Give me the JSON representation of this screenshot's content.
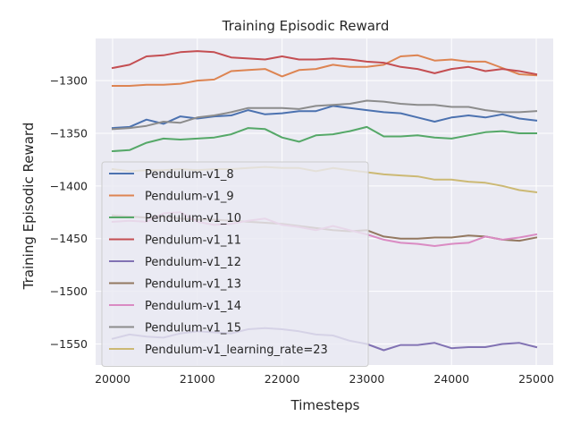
{
  "chart_data": {
    "type": "line",
    "title": "Training Episodic Reward",
    "xlabel": "Timesteps",
    "ylabel": "Training Episodic Reward",
    "xlim": [
      19800,
      25200
    ],
    "ylim": [
      -1570,
      -1260
    ],
    "xticks": [
      20000,
      21000,
      22000,
      23000,
      24000,
      25000
    ],
    "yticks": [
      -1550,
      -1500,
      -1450,
      -1400,
      -1350,
      -1300
    ],
    "grid": true,
    "legend_position": "left",
    "x": [
      20000,
      20200,
      20400,
      20600,
      20800,
      21000,
      21200,
      21400,
      21600,
      21800,
      22000,
      22200,
      22400,
      22600,
      22800,
      23000,
      23200,
      23400,
      23600,
      23800,
      24000,
      24200,
      24400,
      24600,
      24800,
      25000
    ],
    "series": [
      {
        "name": "Pendulum-v1_8",
        "color": "#4c72b0",
        "values": [
          -1345,
          -1344,
          -1337,
          -1341,
          -1334,
          -1336,
          -1334,
          -1333,
          -1328,
          -1332,
          -1331,
          -1329,
          -1329,
          -1324,
          -1326,
          -1328,
          -1330,
          -1331,
          -1335,
          -1339,
          -1335,
          -1333,
          -1335,
          -1332,
          -1336,
          -1338
        ]
      },
      {
        "name": "Pendulum-v1_9",
        "color": "#dd8452",
        "values": [
          -1305,
          -1305,
          -1304,
          -1304,
          -1303,
          -1300,
          -1299,
          -1291,
          -1290,
          -1289,
          -1296,
          -1290,
          -1289,
          -1285,
          -1287,
          -1287,
          -1285,
          -1277,
          -1276,
          -1281,
          -1280,
          -1282,
          -1282,
          -1288,
          -1294,
          -1295
        ]
      },
      {
        "name": "Pendulum-v1_10",
        "color": "#55a868",
        "values": [
          -1367,
          -1366,
          -1359,
          -1355,
          -1356,
          -1355,
          -1354,
          -1351,
          -1345,
          -1346,
          -1354,
          -1358,
          -1352,
          -1351,
          -1348,
          -1344,
          -1353,
          -1353,
          -1352,
          -1354,
          -1355,
          -1352,
          -1349,
          -1348,
          -1350,
          -1350
        ]
      },
      {
        "name": "Pendulum-v1_11",
        "color": "#c44e52",
        "values": [
          -1288,
          -1285,
          -1277,
          -1276,
          -1273,
          -1272,
          -1273,
          -1278,
          -1279,
          -1280,
          -1277,
          -1280,
          -1280,
          -1279,
          -1280,
          -1282,
          -1283,
          -1287,
          -1289,
          -1293,
          -1289,
          -1287,
          -1291,
          -1289,
          -1291,
          -1294
        ]
      },
      {
        "name": "Pendulum-v1_12",
        "color": "#8172b3",
        "values": [
          -1545,
          -1541,
          -1543,
          -1544,
          -1540,
          -1538,
          -1539,
          -1540,
          -1536,
          -1535,
          -1536,
          -1538,
          -1541,
          -1542,
          -1547,
          -1550,
          -1556,
          -1551,
          -1551,
          -1549,
          -1554,
          -1553,
          -1553,
          -1550,
          -1549,
          -1553
        ]
      },
      {
        "name": "Pendulum-v1_13",
        "color": "#937860",
        "values": [
          -1428,
          -1429,
          -1430,
          -1429,
          -1431,
          -1432,
          -1432,
          -1433,
          -1434,
          -1435,
          -1436,
          -1438,
          -1440,
          -1442,
          -1443,
          -1442,
          -1448,
          -1450,
          -1450,
          -1449,
          -1449,
          -1447,
          -1448,
          -1451,
          -1452,
          -1449
        ]
      },
      {
        "name": "Pendulum-v1_14",
        "color": "#da8bc3",
        "values": [
          -1434,
          -1433,
          -1434,
          -1426,
          -1425,
          -1434,
          -1437,
          -1436,
          -1433,
          -1431,
          -1437,
          -1439,
          -1442,
          -1438,
          -1442,
          -1446,
          -1451,
          -1454,
          -1455,
          -1457,
          -1455,
          -1454,
          -1448,
          -1451,
          -1449,
          -1446
        ]
      },
      {
        "name": "Pendulum-v1_15",
        "color": "#8c8c8c",
        "values": [
          -1346,
          -1345,
          -1343,
          -1339,
          -1340,
          -1335,
          -1333,
          -1330,
          -1326,
          -1326,
          -1326,
          -1327,
          -1324,
          -1323,
          -1322,
          -1319,
          -1320,
          -1322,
          -1323,
          -1323,
          -1325,
          -1325,
          -1328,
          -1330,
          -1330,
          -1329
        ]
      },
      {
        "name": "Pendulum-v1_learning_rate=23",
        "color": "#ccb974",
        "values": [
          -1384,
          -1386,
          -1385,
          -1385,
          -1384,
          -1385,
          -1384,
          -1384,
          -1383,
          -1382,
          -1383,
          -1383,
          -1386,
          -1383,
          -1385,
          -1387,
          -1389,
          -1390,
          -1391,
          -1394,
          -1394,
          -1396,
          -1397,
          -1400,
          -1404,
          -1406
        ]
      }
    ]
  }
}
